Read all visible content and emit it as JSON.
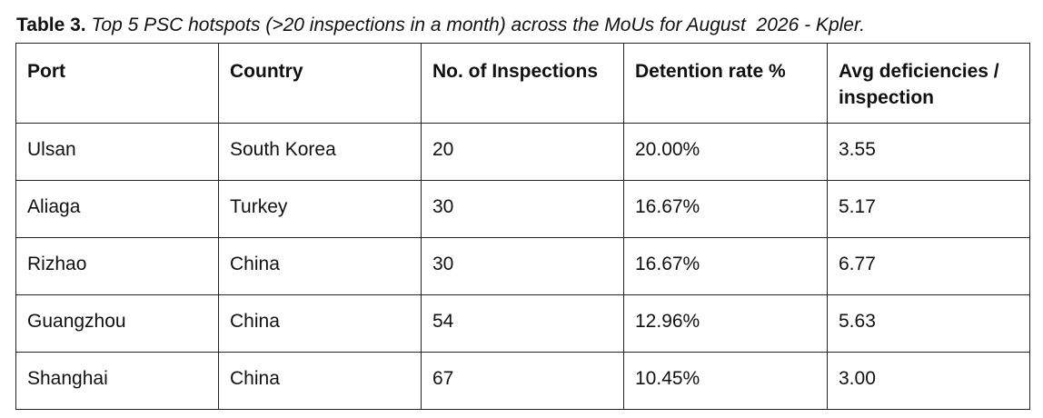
{
  "caption": {
    "label": "Table 3.",
    "text": "Top 5 PSC hotspots (>20 inspections in a month) across the MoUs for August  2026 - Kpler."
  },
  "table": {
    "headers": [
      "Port",
      "Country",
      "No. of Inspections",
      "Detention rate %",
      "Avg deficiencies / inspection"
    ],
    "rows": [
      [
        "Ulsan",
        "South Korea",
        "20",
        "20.00%",
        "3.55"
      ],
      [
        "Aliaga",
        "Turkey",
        "30",
        "16.67%",
        "5.17"
      ],
      [
        "Rizhao",
        "China",
        "30",
        "16.67%",
        "6.77"
      ],
      [
        "Guangzhou",
        "China",
        "54",
        "12.96%",
        "5.63"
      ],
      [
        "Shanghai",
        "China",
        "67",
        "10.45%",
        "3.00"
      ]
    ]
  }
}
